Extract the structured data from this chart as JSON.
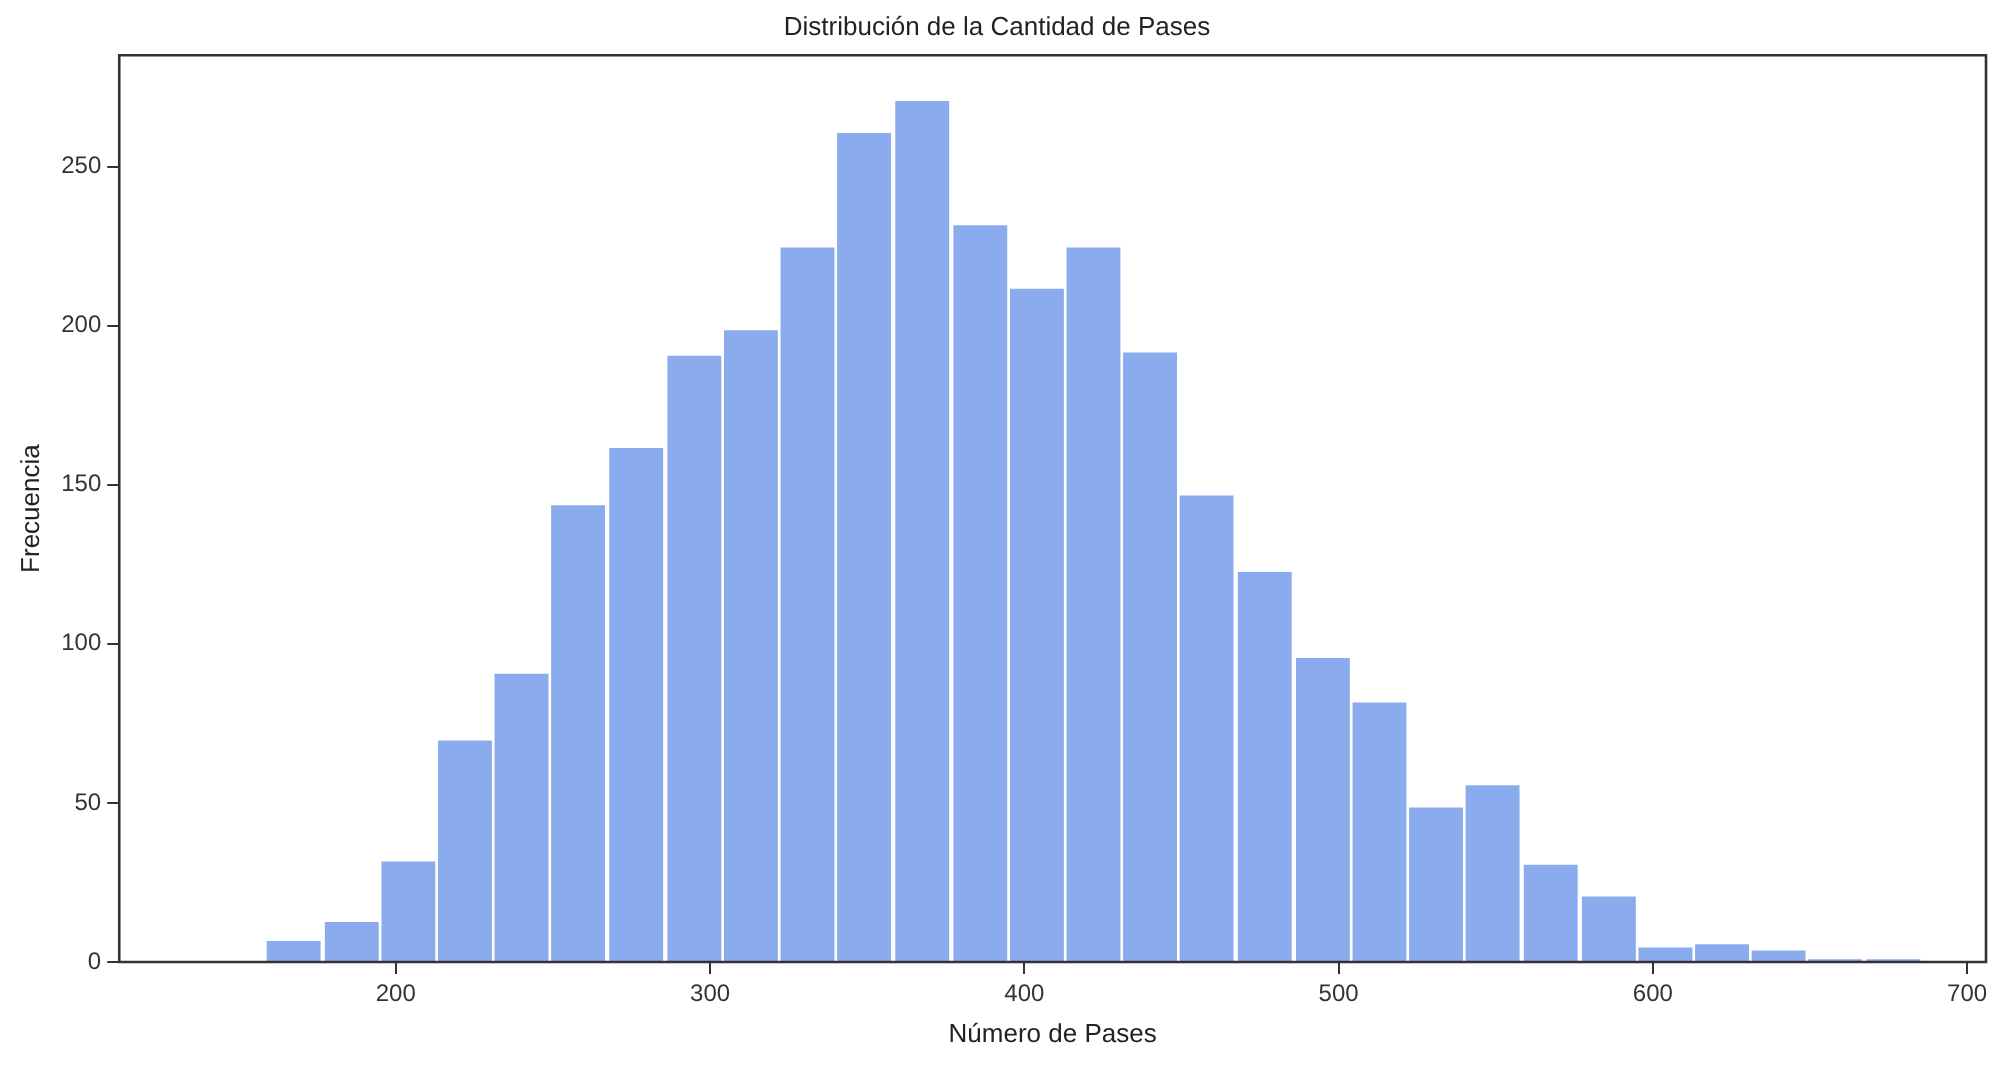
{
  "chart_data": {
    "type": "histogram",
    "title": "Distribución de la Cantidad de Pases",
    "xlabel": "Número de Pases",
    "ylabel": "Frecuencia",
    "bins": [
      158,
      177,
      195,
      213,
      231,
      249,
      267,
      286,
      304,
      322,
      340,
      358,
      377,
      395,
      413,
      431,
      449,
      467,
      486,
      504,
      522,
      540,
      558,
      577,
      595,
      613,
      631,
      649,
      667,
      686
    ],
    "values": [
      7,
      13,
      32,
      70,
      91,
      144,
      162,
      191,
      199,
      225,
      261,
      271,
      232,
      212,
      225,
      192,
      147,
      123,
      96,
      82,
      49,
      56,
      31,
      21,
      5,
      6,
      4,
      1,
      1
    ],
    "color": "#8aacee",
    "xlim": [
      112,
      706
    ],
    "xticks": [
      200,
      300,
      400,
      500,
      600,
      700
    ],
    "ylim": [
      0,
      285
    ],
    "yticks": [
      0,
      50,
      100,
      150,
      200,
      250
    ],
    "grid": false,
    "legend": false
  }
}
